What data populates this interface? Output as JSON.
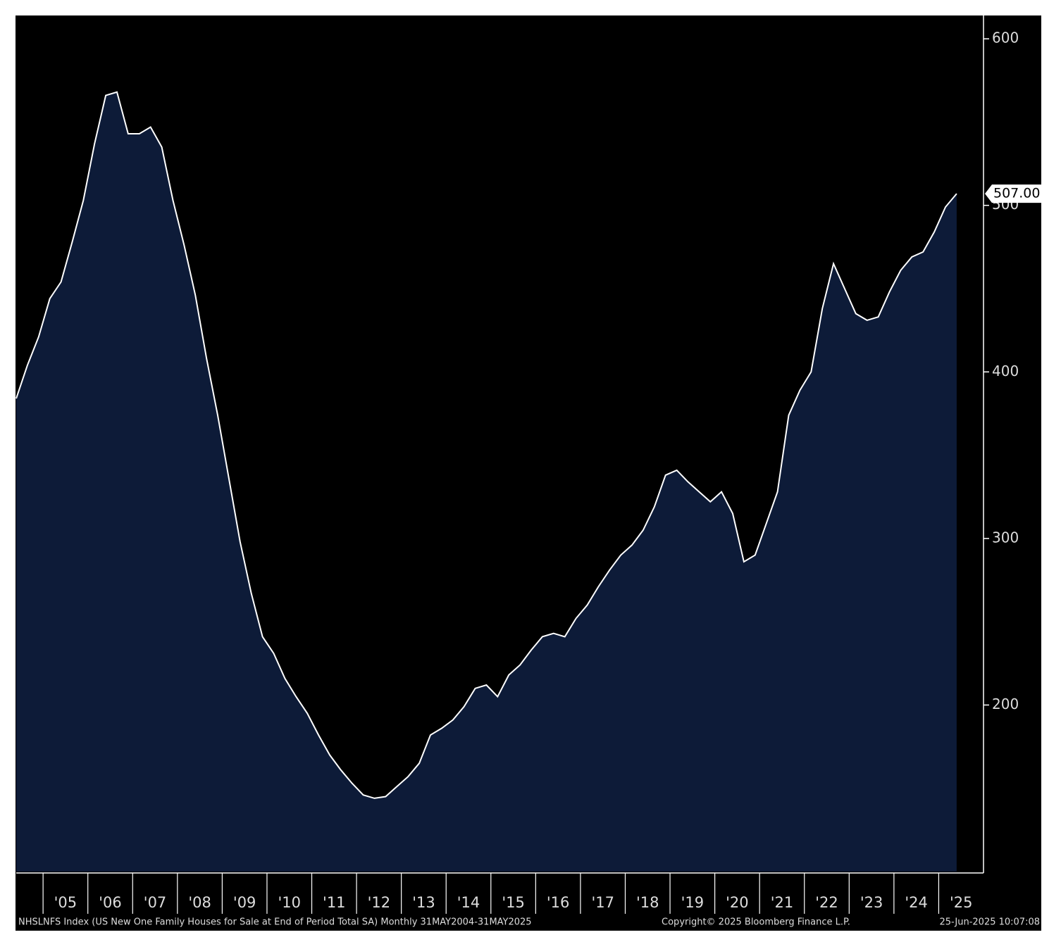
{
  "chart_data": {
    "type": "area",
    "footer_left": "NHSLNFS Index (US New One Family Houses for Sale at End of Period Total SA)  Monthly 31MAY2004-31MAY2025",
    "footer_center": "Copyright© 2025 Bloomberg Finance L.P.",
    "footer_right": "25-Jun-2025 10:07:08",
    "x": [
      2004.4,
      2004.65,
      2004.9,
      2005.15,
      2005.4,
      2005.65,
      2005.9,
      2006.15,
      2006.4,
      2006.65,
      2006.9,
      2007.15,
      2007.4,
      2007.65,
      2007.9,
      2008.15,
      2008.4,
      2008.65,
      2008.9,
      2009.15,
      2009.4,
      2009.65,
      2009.9,
      2010.15,
      2010.4,
      2010.65,
      2010.9,
      2011.15,
      2011.4,
      2011.65,
      2011.9,
      2012.15,
      2012.4,
      2012.65,
      2012.9,
      2013.15,
      2013.4,
      2013.65,
      2013.9,
      2014.15,
      2014.4,
      2014.65,
      2014.9,
      2015.15,
      2015.4,
      2015.65,
      2015.9,
      2016.15,
      2016.4,
      2016.65,
      2016.9,
      2017.15,
      2017.4,
      2017.65,
      2017.9,
      2018.15,
      2018.4,
      2018.65,
      2018.9,
      2019.15,
      2019.4,
      2019.65,
      2019.9,
      2020.15,
      2020.4,
      2020.65,
      2020.9,
      2021.15,
      2021.4,
      2021.65,
      2021.9,
      2022.15,
      2022.4,
      2022.65,
      2022.9,
      2023.15,
      2023.4,
      2023.65,
      2023.9,
      2024.15,
      2024.4,
      2024.65,
      2024.9,
      2025.15,
      2025.4
    ],
    "series": [
      {
        "color": "#ffffff",
        "fill": "#0d1b38",
        "values": [
          384,
          404,
          421,
          444,
          454,
          478,
          503,
          537,
          566,
          568,
          543,
          543,
          547,
          535,
          503,
          476,
          446,
          408,
          374,
          336,
          298,
          267,
          241,
          231,
          216,
          205,
          195,
          182,
          170,
          161,
          153,
          146,
          144,
          145,
          151,
          157,
          165,
          182,
          186,
          191,
          199,
          210,
          212,
          205,
          218,
          224,
          233,
          241,
          243,
          241,
          252,
          260,
          271,
          281,
          290,
          296,
          305,
          319,
          338,
          341,
          334,
          328,
          322,
          328,
          315,
          286,
          290,
          309,
          328,
          374,
          389,
          400,
          438,
          465,
          450,
          435,
          431,
          433,
          448,
          461,
          469,
          472,
          484,
          499,
          507
        ],
        "value_labels": [
          null,
          null,
          null,
          null,
          null,
          null,
          null,
          null,
          null,
          null,
          null,
          null,
          null,
          null,
          null,
          null,
          null,
          null,
          null,
          null,
          null,
          null,
          null,
          null,
          null,
          null,
          null,
          null,
          null,
          null,
          null,
          null,
          null,
          null,
          null,
          null,
          null,
          null,
          null,
          null,
          null,
          null,
          null,
          null,
          null,
          null,
          null,
          null,
          null,
          null,
          null,
          null,
          null,
          null,
          null,
          null,
          null,
          null,
          null,
          null,
          null,
          null,
          null,
          null,
          null,
          null,
          null,
          null,
          null,
          null,
          null,
          null,
          null,
          null,
          null,
          null,
          null,
          null,
          null,
          null,
          null,
          null,
          null,
          null,
          "507.00"
        ]
      }
    ],
    "xlim": [
      2004.4,
      2026.0
    ],
    "xticks": [
      {
        "value": 2005,
        "label": "'05"
      },
      {
        "value": 2006,
        "label": "'06"
      },
      {
        "value": 2007,
        "label": "'07"
      },
      {
        "value": 2008,
        "label": "'08"
      },
      {
        "value": 2009,
        "label": "'09"
      },
      {
        "value": 2010,
        "label": "'10"
      },
      {
        "value": 2011,
        "label": "'11"
      },
      {
        "value": 2012,
        "label": "'12"
      },
      {
        "value": 2013,
        "label": "'13"
      },
      {
        "value": 2014,
        "label": "'14"
      },
      {
        "value": 2015,
        "label": "'15"
      },
      {
        "value": 2016,
        "label": "'16"
      },
      {
        "value": 2017,
        "label": "'17"
      },
      {
        "value": 2018,
        "label": "'18"
      },
      {
        "value": 2019,
        "label": "'19"
      },
      {
        "value": 2020,
        "label": "'20"
      },
      {
        "value": 2021,
        "label": "'21"
      },
      {
        "value": 2022,
        "label": "'22"
      },
      {
        "value": 2023,
        "label": "'23"
      },
      {
        "value": 2024,
        "label": "'24"
      },
      {
        "value": 2025,
        "label": "'25"
      }
    ],
    "ylim": [
      100,
      614
    ],
    "yticks": [
      200,
      300,
      400,
      500,
      600
    ]
  }
}
